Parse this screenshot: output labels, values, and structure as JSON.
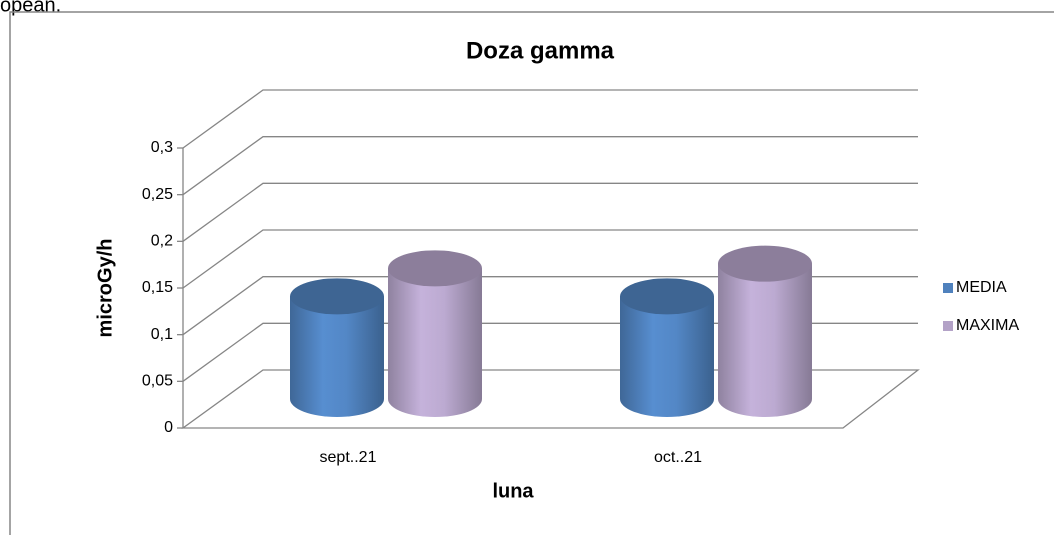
{
  "page_fragment": "opean.",
  "chart_data": {
    "type": "bar3d",
    "title": "Doza gamma",
    "x_label": "luna",
    "y_label": "microGy/h",
    "categories": [
      "sept..21",
      "oct..21"
    ],
    "series": [
      {
        "name": "MEDIA",
        "color": "#4f81bd",
        "values": [
          0.11,
          0.11
        ]
      },
      {
        "name": "MAXIMA",
        "color": "#b3a2c7",
        "values": [
          0.14,
          0.145
        ]
      }
    ],
    "ylim": [
      0,
      0.3
    ],
    "yticks": [
      0,
      {
        "value": 0.05,
        "label": "0,05"
      },
      {
        "value": 0.1,
        "label": "0,1"
      },
      {
        "value": 0.15,
        "label": "0,15"
      },
      {
        "value": 0.2,
        "label": "0,2"
      },
      {
        "value": 0.25,
        "label": "0,25"
      },
      {
        "value": 0.3,
        "label": "0,3"
      }
    ],
    "grid": true,
    "legend": "right"
  }
}
